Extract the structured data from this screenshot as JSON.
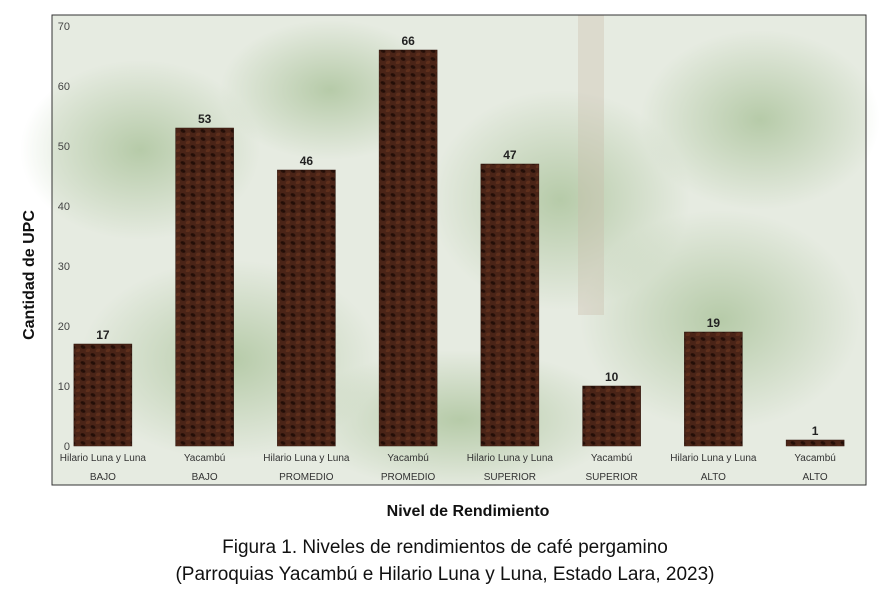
{
  "chart_data": {
    "type": "bar",
    "xlabel": "Nivel de Rendimiento",
    "ylabel": "Cantidad de UPC",
    "ylim": [
      0,
      70
    ],
    "yticks": [
      0,
      10,
      20,
      30,
      40,
      50,
      60,
      70
    ],
    "grid": false,
    "legend": "none",
    "categories": [
      {
        "line1": "Hilario Luna y Luna",
        "line2": "BAJO"
      },
      {
        "line1": "Yacambú",
        "line2": "BAJO"
      },
      {
        "line1": "Hilario Luna y Luna",
        "line2": "PROMEDIO"
      },
      {
        "line1": "Yacambú",
        "line2": "PROMEDIO"
      },
      {
        "line1": "Hilario Luna y Luna",
        "line2": "SUPERIOR"
      },
      {
        "line1": "Yacambú",
        "line2": "SUPERIOR"
      },
      {
        "line1": "Hilario Luna y Luna",
        "line2": "ALTO"
      },
      {
        "line1": "Yacambú",
        "line2": "ALTO"
      }
    ],
    "values": [
      17,
      53,
      46,
      66,
      47,
      10,
      19,
      1
    ]
  },
  "caption": {
    "line1": "Figura 1. Niveles de rendimientos de café pergamino",
    "line2": "(Parroquias Yacambú e Hilario Luna y Luna, Estado Lara, 2023)"
  },
  "colors": {
    "bar": "#4a2417",
    "bean": "#2a120a",
    "background_leaf": "#a8bf9a",
    "plot_background": "#e9eee5"
  }
}
